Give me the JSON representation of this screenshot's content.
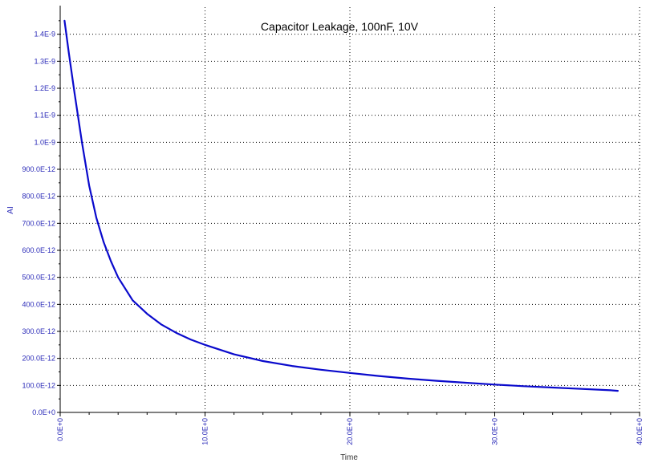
{
  "colors": {
    "series": "#0a0acc",
    "tick_text": "#2a2ab8",
    "axis_line": "#000000",
    "grid": "#000000",
    "xlabel_text": "#333333",
    "ylabel_text": "#2a2ab8",
    "background": "#ffffff"
  },
  "chart_data": {
    "type": "line",
    "title": "Capacitor Leakage, 100nF, 10V",
    "xlabel": "Time",
    "ylabel": "AI",
    "xlim": [
      0,
      40
    ],
    "ylim": [
      0,
      1.5e-09
    ],
    "grid": true,
    "grid_style": "dotted",
    "x_ticks": [
      0,
      10,
      20,
      30,
      40
    ],
    "x_tick_labels": [
      "0.0E+0",
      "10.0E+0",
      "20.0E+0",
      "30.0E+0",
      "40.0E+0"
    ],
    "y_ticks": [
      0,
      1e-10,
      2e-10,
      3e-10,
      4e-10,
      5e-10,
      6e-10,
      7e-10,
      8e-10,
      9e-10,
      1e-09,
      1.1e-09,
      1.2e-09,
      1.3e-09,
      1.4e-09
    ],
    "y_tick_labels": [
      "0.0E+0",
      "100.0E-12",
      "200.0E-12",
      "300.0E-12",
      "400.0E-12",
      "500.0E-12",
      "600.0E-12",
      "700.0E-12",
      "800.0E-12",
      "900.0E-12",
      "1.0E-9",
      "1.1E-9",
      "1.2E-9",
      "1.3E-9",
      "1.4E-9"
    ],
    "series": [
      {
        "x": [
          0.3,
          0.6,
          1.0,
          1.5,
          2.0,
          2.5,
          3.0,
          3.5,
          4.0,
          5.0,
          6.0,
          7.0,
          8.0,
          9.0,
          10.0,
          12.0,
          14.0,
          16.0,
          18.0,
          20.0,
          22.0,
          24.0,
          26.0,
          28.0,
          30.0,
          32.0,
          34.0,
          36.0,
          38.0,
          38.5
        ],
        "y": [
          1.45e-09,
          1.33e-09,
          1.18e-09,
          1e-09,
          8.4e-10,
          7.2e-10,
          6.3e-10,
          5.6e-10,
          5e-10,
          4.15e-10,
          3.65e-10,
          3.25e-10,
          2.95e-10,
          2.7e-10,
          2.5e-10,
          2.15e-10,
          1.9e-10,
          1.72e-10,
          1.58e-10,
          1.46e-10,
          1.35e-10,
          1.25e-10,
          1.17e-10,
          1.1e-10,
          1.03e-10,
          9.7e-11,
          9.2e-11,
          8.7e-11,
          8.2e-11,
          8e-11
        ]
      }
    ]
  }
}
